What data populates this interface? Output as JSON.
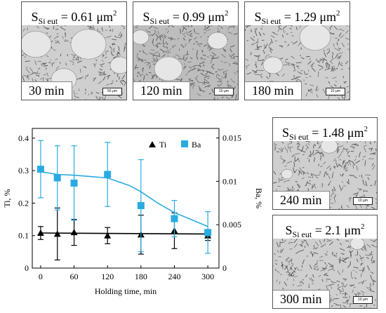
{
  "micrographs": [
    {
      "id": "a",
      "area_prefix": "S",
      "area_sub": "Si eut",
      "area_value": " = 0.61 μm",
      "area_unit_exp": "2",
      "time_label": "30 min",
      "scale_label": "50 μm"
    },
    {
      "id": "b",
      "area_prefix": "S",
      "area_sub": "Si eut",
      "area_value": " = 0.99 μm",
      "area_unit_exp": "2",
      "time_label": "120 min",
      "scale_label": "10 μm"
    },
    {
      "id": "c",
      "area_prefix": "S",
      "area_sub": "Si eut",
      "area_value": " = 1.29 μm",
      "area_unit_exp": "2",
      "time_label": "180 min",
      "scale_label": "10 μm"
    },
    {
      "id": "d",
      "area_prefix": "S",
      "area_sub": "Si eut",
      "area_value": " = 1.48 μm",
      "area_unit_exp": "2",
      "time_label": "240 min",
      "scale_label": "10 μm"
    },
    {
      "id": "e",
      "area_prefix": "S",
      "area_sub": "Si eut",
      "area_value": " = 2.1 μm",
      "area_unit_exp": "2",
      "time_label": "300 min",
      "scale_label": "10 μm"
    }
  ],
  "chart_data": {
    "type": "scatter",
    "xlabel": "Holding time, min",
    "ylabel_left": "Ti, %",
    "ylabel_right": "Ba, %",
    "x_ticks": [
      0,
      60,
      120,
      180,
      240,
      300
    ],
    "xlim": [
      -15,
      320
    ],
    "ylim_left": [
      0,
      0.43
    ],
    "y_ticks_left": [
      0,
      0.1,
      0.2,
      0.3,
      0.4
    ],
    "y_ticks_left_labels": [
      "0",
      "0.1",
      "0.2",
      "0.3",
      "0.4"
    ],
    "ylim_right": [
      0,
      0.0161
    ],
    "y_ticks_right": [
      0,
      0.005,
      0.01,
      0.015
    ],
    "y_ticks_right_labels": [
      "0",
      "0.005",
      "0.01",
      "0.015"
    ],
    "legend_position": "top-right",
    "series": [
      {
        "name": "Ti",
        "axis": "left",
        "marker": "triangle",
        "color": "#000000",
        "x": [
          0,
          30,
          60,
          120,
          180,
          240,
          300
        ],
        "y": [
          0.108,
          0.105,
          0.11,
          0.1,
          0.103,
          0.115,
          0.1
        ],
        "err": [
          0.02,
          0.08,
          0.04,
          0.025,
          0.06,
          0.055,
          0.015
        ],
        "fit": [
          [
            0,
            0.108
          ],
          [
            300,
            0.105
          ]
        ]
      },
      {
        "name": "Ba",
        "axis": "right",
        "marker": "square",
        "color": "#29ABE2",
        "x": [
          0,
          30,
          60,
          120,
          180,
          240,
          300
        ],
        "y": [
          0.0114,
          0.0104,
          0.0098,
          0.0108,
          0.0072,
          0.0057,
          0.0041
        ],
        "err": [
          0.0033,
          0.0037,
          0.0043,
          0.0037,
          0.0053,
          0.0021,
          0.0024
        ],
        "fit": [
          [
            0,
            0.0111
          ],
          [
            30,
            0.0108
          ],
          [
            60,
            0.0107
          ],
          [
            120,
            0.0104
          ],
          [
            160,
            0.0095
          ],
          [
            180,
            0.0088
          ],
          [
            210,
            0.0075
          ],
          [
            240,
            0.0064
          ],
          [
            270,
            0.0056
          ],
          [
            300,
            0.0048
          ]
        ]
      }
    ]
  }
}
